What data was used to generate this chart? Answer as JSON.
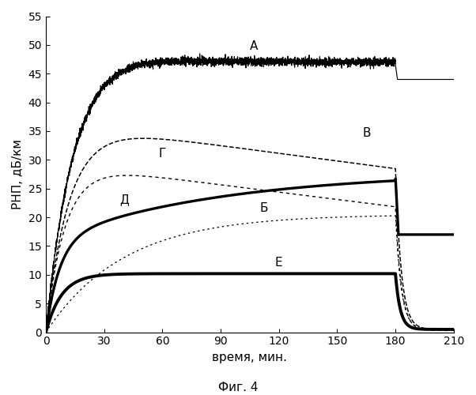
{
  "title": "",
  "xlabel": "время, мин.",
  "ylabel": "РНП, дБ/км",
  "caption": "Фиг. 4",
  "xlim": [
    0,
    210
  ],
  "ylim": [
    0,
    55
  ],
  "xticks": [
    0,
    30,
    60,
    90,
    120,
    150,
    180,
    210
  ],
  "yticks": [
    0,
    5,
    10,
    15,
    20,
    25,
    30,
    35,
    40,
    45,
    50,
    55
  ],
  "background_color": "#ffffff",
  "irradiation_end": 180,
  "label_A": "А",
  "label_B": "Б",
  "label_V": "В",
  "label_G": "Г",
  "label_D": "Д",
  "label_E": "Е"
}
